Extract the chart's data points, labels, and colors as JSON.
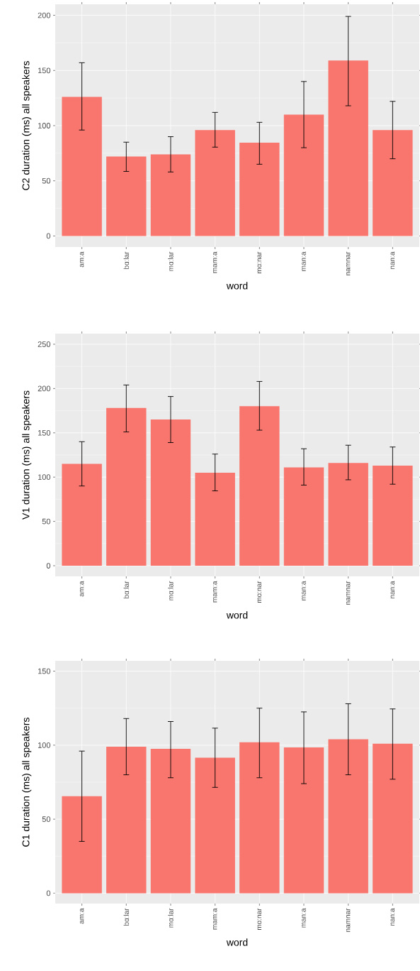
{
  "chart_data": [
    {
      "type": "bar",
      "xlabel": "word",
      "ylabel": "C2 duration (ms) all speakers",
      "color": "#f8766d",
      "grid": true,
      "categories": [
        "amːa",
        "bɑːlar",
        "mɑːlar",
        "mamːa",
        "mɑːnar",
        "manːa",
        "namnar",
        "nanːa"
      ],
      "values": [
        126,
        72,
        74,
        96,
        84.5,
        110,
        159,
        96
      ],
      "errors": [
        [
          96,
          157
        ],
        [
          58.5,
          85
        ],
        [
          58,
          90
        ],
        [
          80.5,
          112
        ],
        [
          65,
          103
        ],
        [
          80,
          140
        ],
        [
          118,
          199
        ],
        [
          70,
          122
        ]
      ],
      "ylim": [
        -10,
        210
      ],
      "yticks": [
        0,
        50,
        100,
        150,
        200
      ]
    },
    {
      "type": "bar",
      "xlabel": "word",
      "ylabel": "V1 duration (ms) all speakers",
      "color": "#f8766d",
      "grid": true,
      "categories": [
        "amːa",
        "bɑːlar",
        "mɑːlar",
        "mamːa",
        "mɑːnar",
        "manːa",
        "namnar",
        "nanːa"
      ],
      "values": [
        115,
        178,
        165,
        105,
        180,
        111,
        116,
        113
      ],
      "errors": [
        [
          90,
          140
        ],
        [
          151,
          204
        ],
        [
          139,
          191
        ],
        [
          84.5,
          126
        ],
        [
          153,
          208
        ],
        [
          91,
          132
        ],
        [
          97,
          136
        ],
        [
          92,
          134
        ]
      ],
      "ylim": [
        -12,
        262
      ],
      "yticks": [
        0,
        50,
        100,
        150,
        200,
        250
      ]
    },
    {
      "type": "bar",
      "xlabel": "word",
      "ylabel": "C1 duration (ms) all speakers",
      "color": "#f8766d",
      "grid": true,
      "categories": [
        "amːa",
        "bɑːlar",
        "mɑːlar",
        "mamːa",
        "mɑːnar",
        "manːa",
        "namnar",
        "nanːa"
      ],
      "values": [
        65.5,
        99,
        97.5,
        91.5,
        102,
        98.5,
        104,
        101
      ],
      "errors": [
        [
          35,
          96
        ],
        [
          80,
          118
        ],
        [
          78,
          116
        ],
        [
          71.5,
          111.5
        ],
        [
          78,
          125
        ],
        [
          74,
          122.5
        ],
        [
          80,
          128
        ],
        [
          77,
          124.5
        ]
      ],
      "ylim": [
        -7,
        157
      ],
      "yticks": [
        0,
        50,
        100,
        150
      ]
    }
  ]
}
